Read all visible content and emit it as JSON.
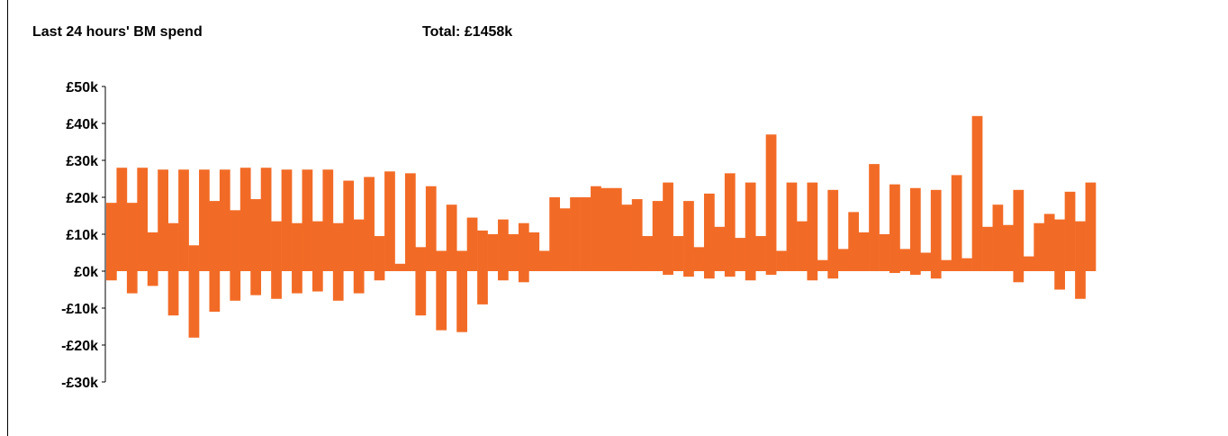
{
  "header": {
    "title": "Last 24 hours' BM spend",
    "total_prefix": "Total:",
    "total_value": "£1458k"
  },
  "chart_data": {
    "type": "bar",
    "title": "Last 24 hours' BM spend",
    "xlabel": "",
    "ylabel": "",
    "ylim": [
      -30,
      50
    ],
    "yunit": "£k",
    "yticks": [
      50,
      40,
      30,
      20,
      10,
      0,
      -10,
      -20,
      -30
    ],
    "ytick_labels": [
      "£50k",
      "£40k",
      "£30k",
      "£20k",
      "£10k",
      "£0k",
      "-£10k",
      "-£20k",
      "-£30k"
    ],
    "grid": false,
    "legend": "none",
    "bar_color": "#F26B26",
    "series": [
      {
        "values": [
          [
            18.5,
            -2.5
          ],
          [
            28,
            0
          ],
          [
            18.5,
            -6
          ],
          [
            28,
            0
          ],
          [
            10.5,
            -4
          ],
          [
            27.5,
            0
          ],
          [
            13,
            -12
          ],
          [
            27.5,
            0
          ],
          [
            7,
            -18
          ],
          [
            27.5,
            0
          ],
          [
            19,
            -11
          ],
          [
            27.5,
            0
          ],
          [
            16.5,
            -8
          ],
          [
            28,
            0
          ],
          [
            19.5,
            -6.5
          ],
          [
            28,
            0
          ],
          [
            13.5,
            -7.5
          ],
          [
            27.5,
            0
          ],
          [
            13,
            -6
          ],
          [
            27.5,
            0
          ],
          [
            13.5,
            -5.5
          ],
          [
            27.5,
            0
          ],
          [
            13,
            -8
          ],
          [
            24.5,
            0
          ],
          [
            14,
            -6
          ],
          [
            25.5,
            0
          ],
          [
            9.5,
            -2.5
          ],
          [
            27,
            0
          ],
          [
            2,
            0
          ],
          [
            26.5,
            0
          ],
          [
            6.5,
            -12
          ],
          [
            23,
            0
          ],
          [
            5.5,
            -16
          ],
          [
            18,
            0
          ],
          [
            5.5,
            -16.5
          ],
          [
            14.5,
            0
          ],
          [
            11,
            -9
          ],
          [
            10,
            0
          ],
          [
            14,
            -2.5
          ],
          [
            10,
            0
          ],
          [
            13,
            -3
          ],
          [
            10.5,
            0
          ],
          [
            5.5,
            0
          ],
          [
            20,
            0
          ],
          [
            17,
            0
          ],
          [
            20,
            0
          ],
          [
            20,
            0
          ],
          [
            23,
            0
          ],
          [
            22.5,
            0
          ],
          [
            22.5,
            0
          ],
          [
            18,
            0
          ],
          [
            19.5,
            0
          ],
          [
            9.5,
            0
          ],
          [
            19,
            0
          ],
          [
            24,
            -1
          ],
          [
            9.5,
            0
          ],
          [
            19,
            -1.5
          ],
          [
            6.5,
            0
          ],
          [
            21,
            -2
          ],
          [
            12,
            0
          ],
          [
            26.5,
            -1.5
          ],
          [
            9,
            0
          ],
          [
            24,
            -2.5
          ],
          [
            9.5,
            0
          ],
          [
            37,
            -1
          ],
          [
            5.5,
            0
          ],
          [
            24,
            0
          ],
          [
            13.5,
            0
          ],
          [
            24,
            -2.5
          ],
          [
            3,
            0
          ],
          [
            22,
            -2
          ],
          [
            6,
            0
          ],
          [
            16,
            0
          ],
          [
            10.5,
            0
          ],
          [
            29,
            0
          ],
          [
            10,
            0
          ],
          [
            23.5,
            -0.5
          ],
          [
            6,
            0
          ],
          [
            22.5,
            -1
          ],
          [
            5,
            0
          ],
          [
            22,
            -2
          ],
          [
            3,
            0
          ],
          [
            26,
            0
          ],
          [
            3.5,
            0
          ],
          [
            42,
            0
          ],
          [
            12,
            0
          ],
          [
            18,
            0
          ],
          [
            12.5,
            0
          ],
          [
            22,
            -3
          ],
          [
            4,
            0
          ],
          [
            13,
            0
          ],
          [
            15.5,
            0
          ],
          [
            14,
            -5
          ],
          [
            21.5,
            0
          ],
          [
            13.5,
            -7.5
          ],
          [
            24,
            0
          ]
        ]
      }
    ]
  }
}
